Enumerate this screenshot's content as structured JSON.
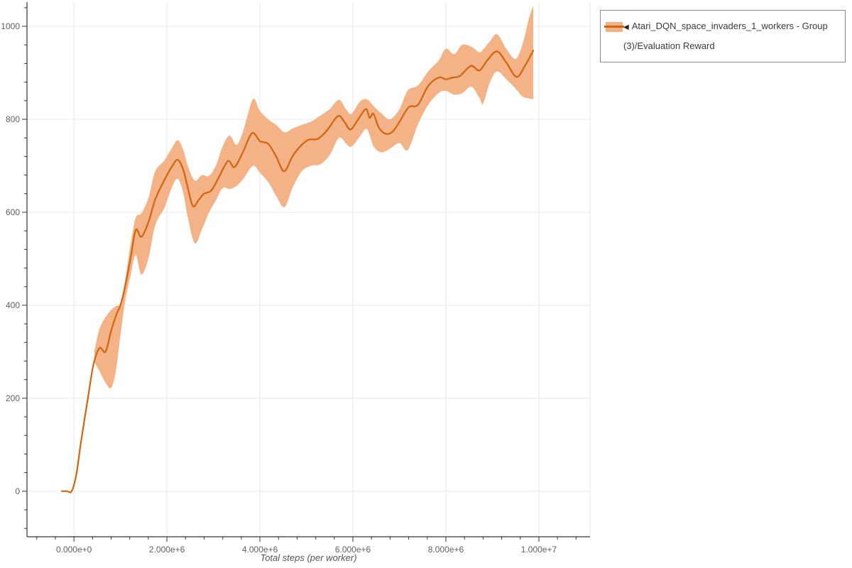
{
  "page": {
    "background": "#ffffff"
  },
  "legend": {
    "collapse_icon": "◀",
    "label": "Atari_DQN_space_invaders_1_workers - Group(3)/Evaluation Reward",
    "band_color": "#f2b184",
    "line_color": "#d2640e",
    "border_color": "#8a8a8a"
  },
  "colors": {
    "gridline": "#e8e8e8",
    "spine": "#333333",
    "tick_label": "#606060",
    "axis_title": "#555555"
  },
  "chart_data": {
    "type": "line",
    "title": "",
    "xlabel": "Total steps (per worker)",
    "ylabel": "",
    "grid": true,
    "legend_position": "top-right",
    "x_axis": {
      "label": "Total steps (per worker)",
      "range": [
        -1010000,
        11100000
      ],
      "major_ticks": [
        {
          "value": 0,
          "label": "0.000e+0"
        },
        {
          "value": 2000000,
          "label": "2.000e+6"
        },
        {
          "value": 4000000,
          "label": "4.000e+6"
        },
        {
          "value": 6000000,
          "label": "6.000e+6"
        },
        {
          "value": 8000000,
          "label": "8.000e+6"
        },
        {
          "value": 10000000,
          "label": "1.000e+7"
        }
      ],
      "minor_tick_step": 400000
    },
    "y_axis": {
      "range": [
        -98,
        1052
      ],
      "major_ticks": [
        {
          "value": 0,
          "label": "0"
        },
        {
          "value": 200,
          "label": "200"
        },
        {
          "value": 400,
          "label": "400"
        },
        {
          "value": 600,
          "label": "600"
        },
        {
          "value": 800,
          "label": "800"
        },
        {
          "value": 1000,
          "label": "1000"
        }
      ],
      "minor_tick_step": 40
    },
    "series": [
      {
        "name": "Atari_DQN_space_invaders_1_workers - Group(3)/Evaluation Reward",
        "line_color": "#d2640e",
        "band_color": "#f3b387",
        "points": [
          [
            -260000,
            0
          ],
          [
            -150000,
            0
          ],
          [
            -50000,
            0
          ],
          [
            50000,
            35
          ],
          [
            150000,
            105
          ],
          [
            300000,
            200
          ],
          [
            420000,
            272
          ],
          [
            550000,
            308
          ],
          [
            680000,
            300
          ],
          [
            800000,
            345
          ],
          [
            920000,
            382
          ],
          [
            1000000,
            400
          ],
          [
            1100000,
            440
          ],
          [
            1220000,
            502
          ],
          [
            1330000,
            562
          ],
          [
            1450000,
            547
          ],
          [
            1600000,
            578
          ],
          [
            1750000,
            628
          ],
          [
            1950000,
            670
          ],
          [
            2100000,
            697
          ],
          [
            2230000,
            713
          ],
          [
            2350000,
            692
          ],
          [
            2450000,
            652
          ],
          [
            2560000,
            613
          ],
          [
            2680000,
            626
          ],
          [
            2800000,
            640
          ],
          [
            2950000,
            646
          ],
          [
            3100000,
            672
          ],
          [
            3310000,
            710
          ],
          [
            3450000,
            697
          ],
          [
            3620000,
            726
          ],
          [
            3830000,
            770
          ],
          [
            4000000,
            753
          ],
          [
            4180000,
            747
          ],
          [
            4350000,
            720
          ],
          [
            4520000,
            688
          ],
          [
            4700000,
            720
          ],
          [
            4880000,
            743
          ],
          [
            5050000,
            756
          ],
          [
            5250000,
            758
          ],
          [
            5450000,
            777
          ],
          [
            5680000,
            807
          ],
          [
            5820000,
            794
          ],
          [
            5950000,
            778
          ],
          [
            6120000,
            801
          ],
          [
            6280000,
            822
          ],
          [
            6360000,
            803
          ],
          [
            6440000,
            812
          ],
          [
            6560000,
            782
          ],
          [
            6700000,
            769
          ],
          [
            6850000,
            773
          ],
          [
            7000000,
            794
          ],
          [
            7200000,
            826
          ],
          [
            7400000,
            831
          ],
          [
            7620000,
            872
          ],
          [
            7850000,
            890
          ],
          [
            8000000,
            886
          ],
          [
            8150000,
            890
          ],
          [
            8300000,
            893
          ],
          [
            8540000,
            915
          ],
          [
            8720000,
            905
          ],
          [
            8900000,
            928
          ],
          [
            9100000,
            946
          ],
          [
            9300000,
            922
          ],
          [
            9520000,
            891
          ],
          [
            9700000,
            915
          ],
          [
            9880000,
            948
          ]
        ],
        "band": [
          [
            440000,
            278,
            302
          ],
          [
            550000,
            258,
            350
          ],
          [
            680000,
            233,
            374
          ],
          [
            800000,
            222,
            390
          ],
          [
            900000,
            258,
            398
          ],
          [
            1000000,
            335,
            405
          ],
          [
            1100000,
            408,
            455
          ],
          [
            1220000,
            465,
            532
          ],
          [
            1330000,
            508,
            588
          ],
          [
            1450000,
            466,
            598
          ],
          [
            1600000,
            500,
            630
          ],
          [
            1750000,
            572,
            688
          ],
          [
            1950000,
            610,
            712
          ],
          [
            2100000,
            652,
            737
          ],
          [
            2230000,
            672,
            755
          ],
          [
            2350000,
            642,
            735
          ],
          [
            2450000,
            588,
            700
          ],
          [
            2600000,
            533,
            668
          ],
          [
            2750000,
            562,
            680
          ],
          [
            2900000,
            598,
            678
          ],
          [
            3050000,
            625,
            700
          ],
          [
            3200000,
            652,
            742
          ],
          [
            3350000,
            650,
            765
          ],
          [
            3500000,
            657,
            745
          ],
          [
            3650000,
            673,
            778
          ],
          [
            3850000,
            700,
            843
          ],
          [
            4000000,
            685,
            818
          ],
          [
            4200000,
            662,
            798
          ],
          [
            4350000,
            635,
            788
          ],
          [
            4530000,
            611,
            772
          ],
          [
            4700000,
            652,
            780
          ],
          [
            4900000,
            688,
            788
          ],
          [
            5100000,
            700,
            795
          ],
          [
            5300000,
            703,
            808
          ],
          [
            5500000,
            723,
            822
          ],
          [
            5700000,
            760,
            842
          ],
          [
            5850000,
            748,
            822
          ],
          [
            5970000,
            741,
            812
          ],
          [
            6150000,
            763,
            838
          ],
          [
            6300000,
            779,
            843
          ],
          [
            6450000,
            741,
            828
          ],
          [
            6620000,
            729,
            812
          ],
          [
            6800000,
            737,
            800
          ],
          [
            7000000,
            749,
            822
          ],
          [
            7180000,
            734,
            862
          ],
          [
            7400000,
            789,
            873
          ],
          [
            7620000,
            831,
            903
          ],
          [
            7850000,
            857,
            927
          ],
          [
            8000000,
            861,
            952
          ],
          [
            8180000,
            853,
            940
          ],
          [
            8350000,
            856,
            960
          ],
          [
            8550000,
            870,
            956
          ],
          [
            8720000,
            846,
            944
          ],
          [
            8800000,
            834,
            950
          ],
          [
            8950000,
            880,
            968
          ],
          [
            9100000,
            903,
            983
          ],
          [
            9300000,
            886,
            952
          ],
          [
            9500000,
            866,
            930
          ],
          [
            9650000,
            849,
            962
          ],
          [
            9780000,
            845,
            1015
          ],
          [
            9880000,
            843,
            1045
          ]
        ]
      }
    ]
  }
}
